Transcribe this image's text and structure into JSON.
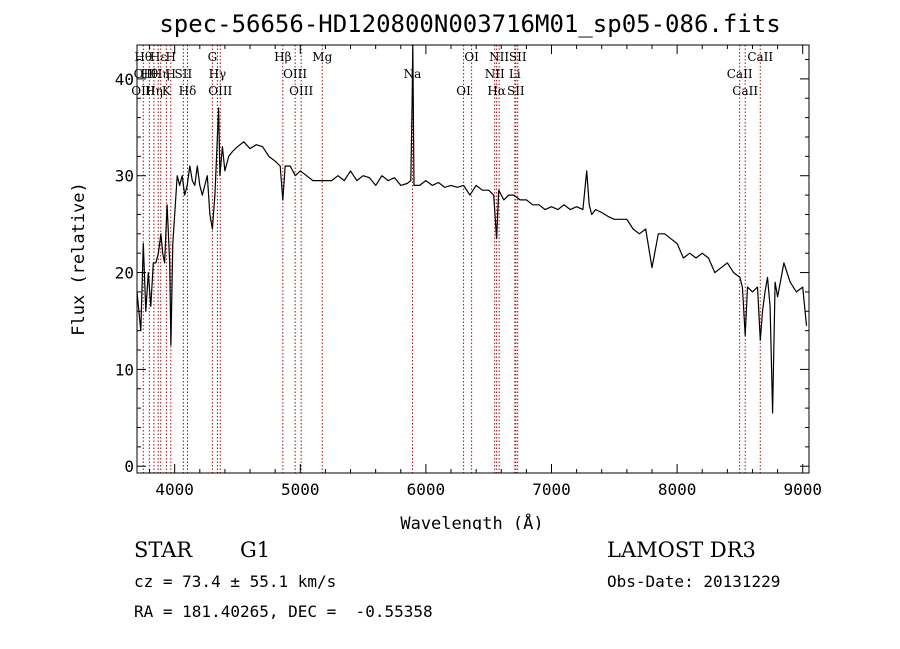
{
  "chart_data": {
    "type": "line",
    "title": "spec-56656-HD120800N003716M01_sp05-086.fits",
    "xlabel": "Wavelength (Å)",
    "ylabel": "Flux (relative)",
    "xlim": [
      3700,
      9050
    ],
    "ylim": [
      -0.7,
      43.5
    ],
    "x_ticks": [
      4000,
      5000,
      6000,
      7000,
      8000,
      9000
    ],
    "y_ticks": [
      0,
      10,
      20,
      30,
      40
    ],
    "x_tick_labels": [
      "4000",
      "5000",
      "6000",
      "7000",
      "8000",
      "9000"
    ],
    "y_tick_labels": [
      "0",
      "10",
      "20",
      "30",
      "40"
    ],
    "grid": false,
    "line_color": "#000000",
    "marker_color": "#a01010",
    "series": [
      {
        "x": [
          3700,
          3730,
          3750,
          3770,
          3790,
          3810,
          3830,
          3850,
          3870,
          3890,
          3905,
          3920,
          3940,
          3960,
          3970,
          3985,
          4000,
          4020,
          4040,
          4060,
          4080,
          4100,
          4120,
          4140,
          4160,
          4180,
          4200,
          4220,
          4240,
          4260,
          4280,
          4300,
          4320,
          4340,
          4350,
          4360,
          4380,
          4400,
          4430,
          4460,
          4500,
          4550,
          4600,
          4650,
          4700,
          4750,
          4800,
          4840,
          4861,
          4880,
          4920,
          4960,
          5000,
          5050,
          5100,
          5150,
          5200,
          5250,
          5300,
          5350,
          5400,
          5450,
          5500,
          5550,
          5600,
          5650,
          5700,
          5750,
          5800,
          5850,
          5880,
          5890,
          5896,
          5905,
          5950,
          6000,
          6050,
          6100,
          6150,
          6200,
          6250,
          6300,
          6350,
          6400,
          6450,
          6500,
          6540,
          6563,
          6580,
          6620,
          6660,
          6700,
          6750,
          6800,
          6850,
          6900,
          6950,
          7000,
          7050,
          7100,
          7150,
          7200,
          7250,
          7280,
          7300,
          7320,
          7350,
          7400,
          7450,
          7500,
          7550,
          7600,
          7650,
          7700,
          7750,
          7800,
          7850,
          7900,
          7950,
          8000,
          8050,
          8100,
          8150,
          8200,
          8250,
          8300,
          8350,
          8400,
          8450,
          8500,
          8520,
          8542,
          8560,
          8600,
          8640,
          8662,
          8680,
          8700,
          8720,
          8740,
          8760,
          8780,
          8800,
          8850,
          8900,
          8950,
          9000,
          9030
        ],
        "y": [
          18.0,
          14.0,
          23.0,
          16.0,
          20.0,
          16.5,
          21.0,
          21.0,
          22.0,
          24.0,
          22.0,
          21.0,
          27.0,
          21.0,
          12.5,
          23.0,
          26.0,
          30.0,
          29.0,
          30.0,
          28.0,
          29.0,
          31.0,
          29.5,
          29.0,
          31.0,
          29.0,
          28.0,
          29.0,
          30.0,
          26.0,
          24.5,
          28.0,
          34.0,
          37.0,
          30.0,
          33.0,
          30.5,
          32.0,
          32.5,
          33.0,
          33.5,
          32.8,
          33.2,
          33.0,
          32.0,
          31.5,
          31.0,
          27.5,
          31.0,
          31.0,
          30.0,
          30.5,
          30.0,
          29.5,
          29.5,
          29.5,
          29.5,
          30.0,
          29.5,
          30.5,
          29.5,
          30.0,
          29.8,
          29.0,
          30.0,
          29.5,
          29.8,
          29.0,
          29.2,
          29.5,
          37.5,
          43.5,
          29.0,
          29.0,
          29.5,
          29.0,
          29.3,
          28.8,
          29.0,
          28.8,
          29.0,
          28.0,
          29.0,
          28.5,
          28.5,
          28.0,
          23.5,
          28.5,
          27.5,
          28.0,
          28.0,
          27.5,
          27.5,
          27.0,
          27.0,
          26.5,
          26.8,
          26.5,
          27.0,
          26.5,
          26.8,
          26.5,
          30.5,
          27.0,
          26.0,
          26.5,
          26.2,
          25.8,
          25.5,
          25.5,
          25.5,
          24.5,
          24.0,
          24.5,
          20.5,
          24.0,
          24.0,
          23.5,
          23.0,
          21.5,
          22.0,
          21.5,
          22.0,
          21.5,
          20.0,
          20.5,
          21.0,
          20.0,
          19.5,
          18.5,
          13.5,
          18.5,
          18.0,
          18.5,
          13.0,
          16.0,
          18.0,
          19.5,
          16.5,
          5.5,
          19.0,
          17.5,
          21.0,
          19.0,
          18.0,
          18.5,
          14.5
        ]
      }
    ],
    "line_markers": [
      {
        "wl": 3750,
        "labels": [
          "Hθ",
          "OII",
          "OIII"
        ]
      },
      {
        "wl": 3798,
        "labels": [
          "Hθ"
        ]
      },
      {
        "wl": 3835,
        "labels": [
          "Hη"
        ]
      },
      {
        "wl": 3869,
        "labels": [
          "Hε"
        ]
      },
      {
        "wl": 3889,
        "labels": [
          "Hη"
        ]
      },
      {
        "wl": 3934,
        "labels": [
          "K"
        ]
      },
      {
        "wl": 3969,
        "labels": [
          "H",
          "H"
        ]
      },
      {
        "wl": 4069,
        "labels": [
          "SII"
        ]
      },
      {
        "wl": 4102,
        "labels": [
          "Hδ"
        ]
      },
      {
        "wl": 4300,
        "labels": [
          "G"
        ]
      },
      {
        "wl": 4340,
        "labels": [
          "Hγ"
        ]
      },
      {
        "wl": 4363,
        "labels": [
          "OIII"
        ]
      },
      {
        "wl": 4861,
        "labels": [
          "Hβ"
        ]
      },
      {
        "wl": 4959,
        "labels": [
          "OIII"
        ]
      },
      {
        "wl": 5007,
        "labels": [
          "OIII"
        ]
      },
      {
        "wl": 5175,
        "labels": [
          "Mg"
        ]
      },
      {
        "wl": 5893,
        "labels": [
          "Na"
        ]
      },
      {
        "wl": 6300,
        "labels": [
          "OI"
        ]
      },
      {
        "wl": 6364,
        "labels": [
          "OI"
        ]
      },
      {
        "wl": 6548,
        "labels": [
          "NII"
        ]
      },
      {
        "wl": 6563,
        "labels": [
          "Hα"
        ]
      },
      {
        "wl": 6583,
        "labels": [
          "NII"
        ]
      },
      {
        "wl": 6708,
        "labels": [
          "Li"
        ]
      },
      {
        "wl": 6716,
        "labels": [
          "SII"
        ]
      },
      {
        "wl": 6731,
        "labels": [
          "SII"
        ]
      },
      {
        "wl": 8498,
        "labels": [
          "CaII"
        ]
      },
      {
        "wl": 8542,
        "labels": [
          "CaII"
        ]
      },
      {
        "wl": 8662,
        "labels": [
          "CaII"
        ]
      }
    ]
  },
  "info": {
    "object_class": "STAR",
    "subclass": "G1",
    "survey": "LAMOST DR3",
    "redshift_text": "cz = 73.4 ± 55.1 km/s",
    "obs_date": "Obs-Date: 20131229",
    "coords_text": "RA = 181.40265, DEC =  -0.55358"
  }
}
